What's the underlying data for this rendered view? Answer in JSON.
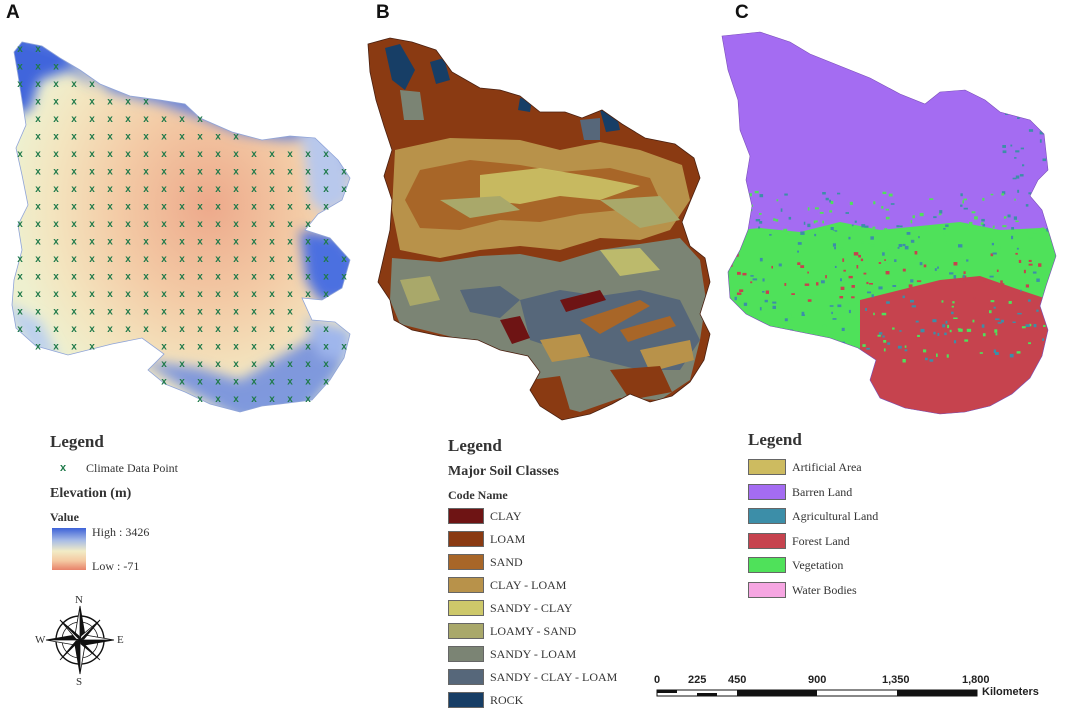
{
  "panels": {
    "a": {
      "letter": "A",
      "legend": {
        "title": "Legend",
        "point_label": "Climate Data Point",
        "elevation_title": "Elevation (m)",
        "value_title": "Value",
        "high_label": "High : 3426",
        "low_label": "Low : -71"
      },
      "compass": {
        "n": "N",
        "e": "E",
        "s": "S",
        "w": "W"
      }
    },
    "b": {
      "letter": "B",
      "legend": {
        "title": "Legend",
        "subtitle": "Major Soil Classes",
        "code_header": "Code Name",
        "classes": [
          {
            "name": "CLAY",
            "color": "#6e1414"
          },
          {
            "name": "LOAM",
            "color": "#8a3a12"
          },
          {
            "name": "SAND",
            "color": "#a86628"
          },
          {
            "name": "CLAY - LOAM",
            "color": "#b8924a"
          },
          {
            "name": "SANDY - CLAY",
            "color": "#cdc86a"
          },
          {
            "name": "LOAMY - SAND",
            "color": "#a9a86a"
          },
          {
            "name": "SANDY - LOAM",
            "color": "#7b8474"
          },
          {
            "name": "SANDY - CLAY - LOAM",
            "color": "#56677a"
          },
          {
            "name": "ROCK",
            "color": "#173e66"
          }
        ]
      }
    },
    "c": {
      "letter": "C",
      "legend": {
        "title": "Legend",
        "classes": [
          {
            "name": "Artificial Area",
            "color": "#cdbb60"
          },
          {
            "name": "Barren Land",
            "color": "#a46cf2"
          },
          {
            "name": "Agricultural Land",
            "color": "#3c8ea8"
          },
          {
            "name": "Forest Land",
            "color": "#c6434e"
          },
          {
            "name": "Vegetation",
            "color": "#4fe15a"
          },
          {
            "name": "Water Bodies",
            "color": "#f6a6e2"
          }
        ]
      }
    }
  },
  "scale_bar": {
    "ticks": [
      "0",
      "225",
      "450",
      "900",
      "1,350",
      "1,800"
    ],
    "unit": "Kilometers"
  }
}
